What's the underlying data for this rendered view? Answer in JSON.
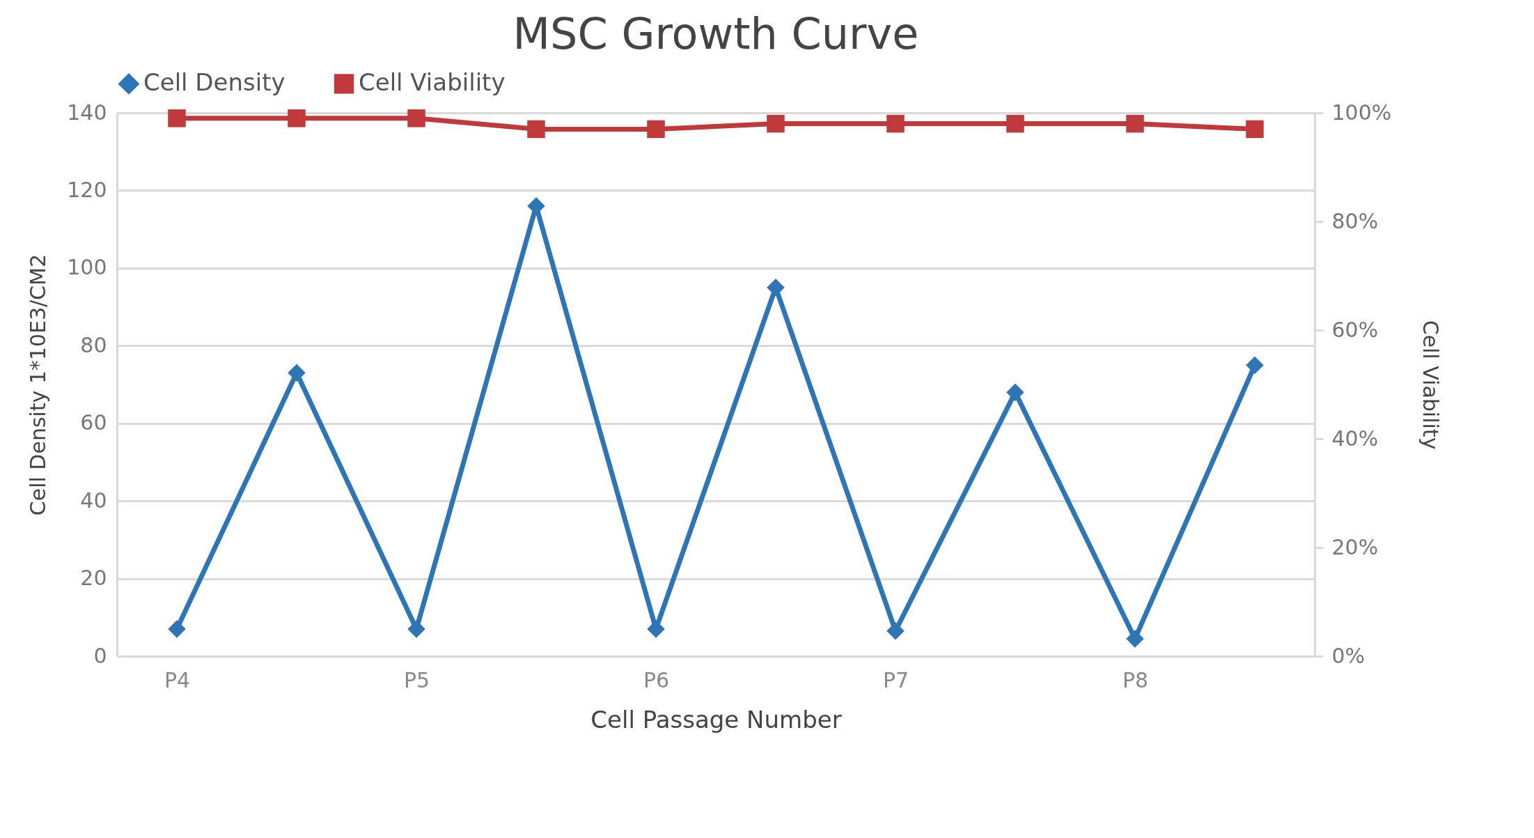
{
  "chart_data": {
    "type": "line",
    "title": "MSC Growth Curve",
    "xlabel": "Cell Passage Number",
    "ylabel": "Cell Density 1*10E3/CM2",
    "y2label": "Cell Viability",
    "categories": [
      "P4",
      null,
      "P5",
      null,
      "P6",
      null,
      "P7",
      null,
      "P8",
      null
    ],
    "series": [
      {
        "name": "Cell Density",
        "color": "#2e75b6",
        "marker": "diamond",
        "values": [
          7,
          73,
          7,
          116,
          7,
          95,
          6.5,
          68,
          4.5,
          75
        ]
      },
      {
        "name": "Cell Viability",
        "color": "#c0393b",
        "marker": "square",
        "axis": "y2",
        "values": [
          99,
          99,
          99,
          97,
          97,
          98,
          98,
          98,
          98,
          97
        ]
      }
    ],
    "ylim": [
      0,
      140
    ],
    "yticks": [
      0,
      20,
      40,
      60,
      80,
      100,
      120,
      140
    ],
    "y2lim": [
      0,
      100
    ],
    "y2ticks": [
      {
        "value": 0,
        "label": "0%"
      },
      {
        "value": 20,
        "label": "20%"
      },
      {
        "value": 40,
        "label": "40%"
      },
      {
        "value": 60,
        "label": "60%"
      },
      {
        "value": 80,
        "label": "80%"
      },
      {
        "value": 100,
        "label": "100%"
      }
    ],
    "grid": "y",
    "legend": "top",
    "line_style": "solid"
  }
}
